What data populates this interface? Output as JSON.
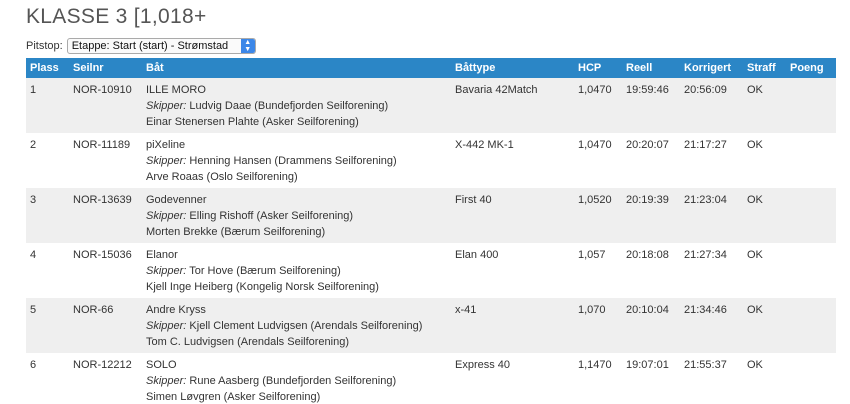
{
  "page": {
    "title": "KLASSE 3 [1,018+"
  },
  "pitstop": {
    "label": "Pitstop:",
    "selected": "Etappe: Start (start) - Strømstad"
  },
  "table": {
    "headers": [
      "Plass",
      "Seilnr",
      "Båt",
      "Båttype",
      "HCP",
      "Reell",
      "Korrigert",
      "Straff",
      "Poeng"
    ],
    "skipper_label": "Skipper:",
    "rows": [
      {
        "plass": "1",
        "seilnr": "NOR-10910",
        "boat": "ILLE MORO",
        "skipper": "Ludvig Daae (Bundefjorden Seilforening)",
        "crew": "Einar Stenersen Plahte (Asker Seilforening)",
        "battype": "Bavaria 42Match",
        "hcp": "1,0470",
        "reell": "19:59:46",
        "korrigert": "20:56:09",
        "straff": "OK",
        "poeng": ""
      },
      {
        "plass": "2",
        "seilnr": "NOR-11189",
        "boat": "piXeline",
        "skipper": "Henning Hansen (Drammens Seilforening)",
        "crew": "Arve Roaas (Oslo Seilforening)",
        "battype": "X-442 MK-1",
        "hcp": "1,0470",
        "reell": "20:20:07",
        "korrigert": "21:17:27",
        "straff": "OK",
        "poeng": ""
      },
      {
        "plass": "3",
        "seilnr": "NOR-13639",
        "boat": "Godevenner",
        "skipper": "Elling Rishoff (Asker Seilforening)",
        "crew": "Morten Brekke (Bærum Seilforening)",
        "battype": "First 40",
        "hcp": "1,0520",
        "reell": "20:19:39",
        "korrigert": "21:23:04",
        "straff": "OK",
        "poeng": ""
      },
      {
        "plass": "4",
        "seilnr": "NOR-15036",
        "boat": "Elanor",
        "skipper": "Tor Hove (Bærum Seilforening)",
        "crew": "Kjell Inge Heiberg (Kongelig Norsk Seilforening)",
        "battype": "Elan 400",
        "hcp": "1,057",
        "reell": "20:18:08",
        "korrigert": "21:27:34",
        "straff": "OK",
        "poeng": ""
      },
      {
        "plass": "5",
        "seilnr": "NOR-66",
        "boat": "Andre Kryss",
        "skipper": "Kjell Clement Ludvigsen (Arendals Seilforening)",
        "crew": "Tom C. Ludvigsen (Arendals Seilforening)",
        "battype": "x-41",
        "hcp": "1,070",
        "reell": "20:10:04",
        "korrigert": "21:34:46",
        "straff": "OK",
        "poeng": ""
      },
      {
        "plass": "6",
        "seilnr": "NOR-12212",
        "boat": "SOLO",
        "skipper": "Rune Aasberg (Bundefjorden Seilforening)",
        "crew": "Simen Løvgren (Asker Seilforening)",
        "battype": "Express 40",
        "hcp": "1,1470",
        "reell": "19:07:01",
        "korrigert": "21:55:37",
        "straff": "OK",
        "poeng": ""
      }
    ]
  },
  "colors": {
    "header_bg": "#2b86c6",
    "stripe_bg": "#efefef",
    "select_button": "#3b87e8"
  }
}
